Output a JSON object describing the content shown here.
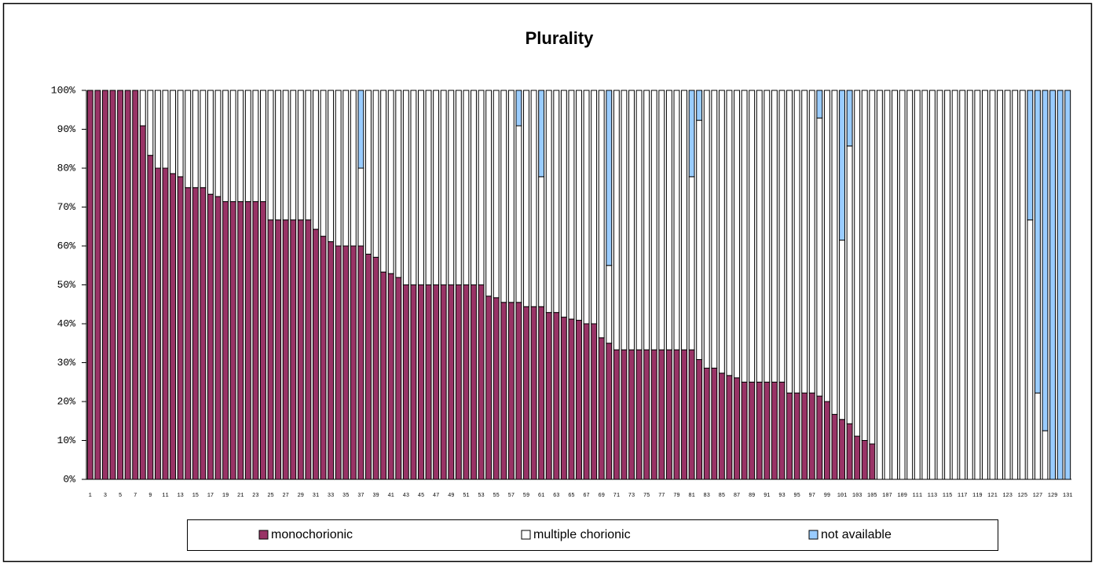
{
  "chart_data": {
    "type": "stacked_bar_100",
    "title": "Plurality",
    "categories": [
      "1",
      null,
      "3",
      null,
      "5",
      null,
      "7",
      null,
      "9",
      null,
      "11",
      null,
      "13",
      null,
      "15",
      null,
      "17",
      null,
      "19",
      null,
      "21",
      null,
      "23",
      null,
      "25",
      null,
      "27",
      null,
      "29",
      null,
      "31",
      null,
      "33",
      null,
      "35",
      null,
      "37",
      null,
      "39",
      null,
      "41",
      null,
      "43",
      null,
      "45",
      null,
      "47",
      null,
      "49",
      null,
      "51",
      null,
      "53",
      null,
      "55",
      null,
      "57",
      null,
      "59",
      null,
      "61",
      null,
      "63",
      null,
      "65",
      null,
      "67",
      null,
      "69",
      null,
      "71",
      null,
      "73",
      null,
      "75",
      null,
      "77",
      null,
      "79",
      null,
      "81",
      null,
      "83",
      null,
      "85",
      null,
      "87",
      null,
      "89",
      null,
      "91",
      null,
      "93",
      null,
      "95",
      null,
      "97",
      null,
      "99",
      null,
      "101",
      null,
      "103",
      null,
      "105",
      null,
      "107",
      null,
      "109",
      null,
      "111",
      null,
      "113",
      null,
      "115",
      null,
      "117",
      null,
      "119",
      null,
      "121",
      null,
      "123",
      null,
      "125",
      null,
      "127",
      null,
      "129",
      null,
      "131"
    ],
    "series": [
      {
        "name": "monochorionic",
        "color": "#993366",
        "values": [
          100,
          100,
          100,
          100,
          100,
          100,
          100,
          90.9,
          83.3,
          80,
          80,
          78.6,
          77.8,
          75,
          75,
          75,
          73.3,
          72.7,
          71.4,
          71.4,
          71.4,
          71.4,
          71.4,
          71.4,
          66.7,
          66.7,
          66.7,
          66.7,
          66.7,
          66.7,
          64.3,
          62.5,
          61.1,
          60,
          60,
          60,
          60,
          57.9,
          57.1,
          53.3,
          52.9,
          51.9,
          50,
          50,
          50,
          50,
          50,
          50,
          50,
          50,
          50,
          50,
          50,
          47.1,
          46.7,
          45.5,
          45.5,
          45.5,
          44.4,
          44.4,
          44.4,
          42.9,
          42.9,
          41.7,
          41.2,
          40.9,
          40,
          40,
          36.4,
          35,
          33.3,
          33.3,
          33.3,
          33.3,
          33.3,
          33.3,
          33.3,
          33.3,
          33.3,
          33.3,
          33.3,
          30.8,
          28.6,
          28.6,
          27.3,
          26.7,
          26.1,
          25,
          25,
          25,
          25,
          25,
          25,
          22.2,
          22.2,
          22.2,
          22.2,
          21.4,
          20,
          16.7,
          15.4,
          14.3,
          11.1,
          10,
          9.1,
          0,
          0,
          0,
          0,
          0,
          0,
          0,
          0,
          0,
          0,
          0,
          0,
          0,
          0,
          0,
          0,
          0,
          0,
          0,
          0,
          0,
          0,
          0,
          0,
          0,
          0
        ]
      },
      {
        "name": "multiple chorionic",
        "color": "#ffffff",
        "values": [
          0,
          0,
          0,
          0,
          0,
          0,
          0,
          9.1,
          16.7,
          20,
          20,
          21.4,
          22.2,
          25,
          25,
          25,
          26.7,
          27.3,
          28.6,
          28.6,
          28.6,
          28.6,
          28.6,
          28.6,
          33.3,
          33.3,
          33.3,
          33.3,
          33.3,
          33.3,
          35.7,
          37.5,
          38.9,
          40,
          40,
          40,
          20,
          42.1,
          42.9,
          46.7,
          47.1,
          48.1,
          50,
          50,
          50,
          50,
          50,
          50,
          50,
          50,
          50,
          50,
          50,
          52.9,
          53.3,
          54.5,
          54.5,
          45.4,
          55.6,
          55.6,
          33.4,
          57.1,
          57.1,
          58.3,
          58.8,
          59.1,
          60,
          60,
          63.6,
          20,
          66.7,
          66.7,
          66.7,
          66.7,
          66.7,
          66.7,
          66.7,
          66.7,
          66.7,
          66.7,
          44.5,
          61.5,
          71.4,
          71.4,
          72.7,
          73.3,
          73.9,
          75,
          75,
          75,
          75,
          75,
          75,
          77.8,
          77.8,
          77.8,
          77.8,
          71.5,
          80,
          83.3,
          46.1,
          71.4,
          88.9,
          90,
          90.9,
          100,
          100,
          100,
          100,
          100,
          100,
          100,
          100,
          100,
          100,
          100,
          100,
          100,
          100,
          100,
          100,
          100,
          100,
          100,
          100,
          66.7,
          22.2,
          12.5,
          0,
          0,
          0
        ]
      },
      {
        "name": "not available",
        "color": "#99ccff",
        "values": [
          0,
          0,
          0,
          0,
          0,
          0,
          0,
          0,
          0,
          0,
          0,
          0,
          0,
          0,
          0,
          0,
          0,
          0,
          0,
          0,
          0,
          0,
          0,
          0,
          0,
          0,
          0,
          0,
          0,
          0,
          0,
          0,
          0,
          0,
          0,
          0,
          20,
          0,
          0,
          0,
          0,
          0,
          0,
          0,
          0,
          0,
          0,
          0,
          0,
          0,
          0,
          0,
          0,
          0,
          0,
          0,
          0,
          9.1,
          0,
          0,
          22.2,
          0,
          0,
          0,
          0,
          0,
          0,
          0,
          0,
          45,
          0,
          0,
          0,
          0,
          0,
          0,
          0,
          0,
          0,
          0,
          22.2,
          7.7,
          0,
          0,
          0,
          0,
          0,
          0,
          0,
          0,
          0,
          0,
          0,
          0,
          0,
          0,
          0,
          7.1,
          0,
          0,
          38.5,
          14.3,
          0,
          0,
          0,
          0,
          0,
          0,
          0,
          0,
          0,
          0,
          0,
          0,
          0,
          0,
          0,
          0,
          0,
          0,
          0,
          0,
          0,
          0,
          0,
          33.3,
          77.8,
          87.5,
          100,
          100,
          100
        ]
      }
    ],
    "ylim": [
      0,
      100
    ],
    "yticks": [
      {
        "value": 0,
        "label": "0%"
      },
      {
        "value": 10,
        "label": "10%"
      },
      {
        "value": 20,
        "label": "20%"
      },
      {
        "value": 30,
        "label": "30%"
      },
      {
        "value": 40,
        "label": "40%"
      },
      {
        "value": 50,
        "label": "50%"
      },
      {
        "value": 60,
        "label": "60%"
      },
      {
        "value": 70,
        "label": "70%"
      },
      {
        "value": 80,
        "label": "80%"
      },
      {
        "value": 90,
        "label": "90%"
      },
      {
        "value": 100,
        "label": "100%"
      }
    ],
    "grid": false,
    "legend": "bottom"
  }
}
